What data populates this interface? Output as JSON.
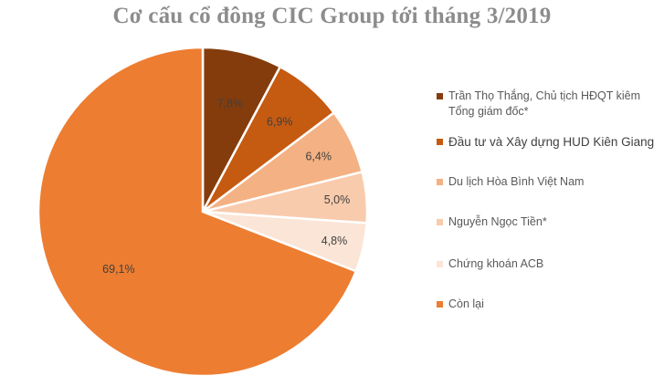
{
  "chart_data": {
    "type": "pie",
    "title": "Cơ cấu cổ đông CIC Group tới tháng 3/2019",
    "slices": [
      {
        "name": "Trần Thọ Thắng, Chủ tịch HĐQT kiêm Tổng giám đốc*",
        "value": 7.8,
        "label": "7,8%",
        "color": "#843c0c"
      },
      {
        "name": "Đầu tư và Xây dựng HUD Kiên Giang",
        "value": 6.9,
        "label": "6,9%",
        "color": "#c55a11"
      },
      {
        "name": "Du lịch Hòa Bình Việt Nam",
        "value": 6.4,
        "label": "6,4%",
        "color": "#f4b183"
      },
      {
        "name": "Nguyễn Ngọc Tiền*",
        "value": 5.0,
        "label": "5,0%",
        "color": "#f8cbad"
      },
      {
        "name": "Chứng khoán ACB",
        "value": 4.8,
        "label": "4,8%",
        "color": "#fbe5d6"
      },
      {
        "name": "Còn lại",
        "value": 69.1,
        "label": "69,1%",
        "color": "#ed7d31"
      }
    ],
    "legend_position": "right"
  }
}
